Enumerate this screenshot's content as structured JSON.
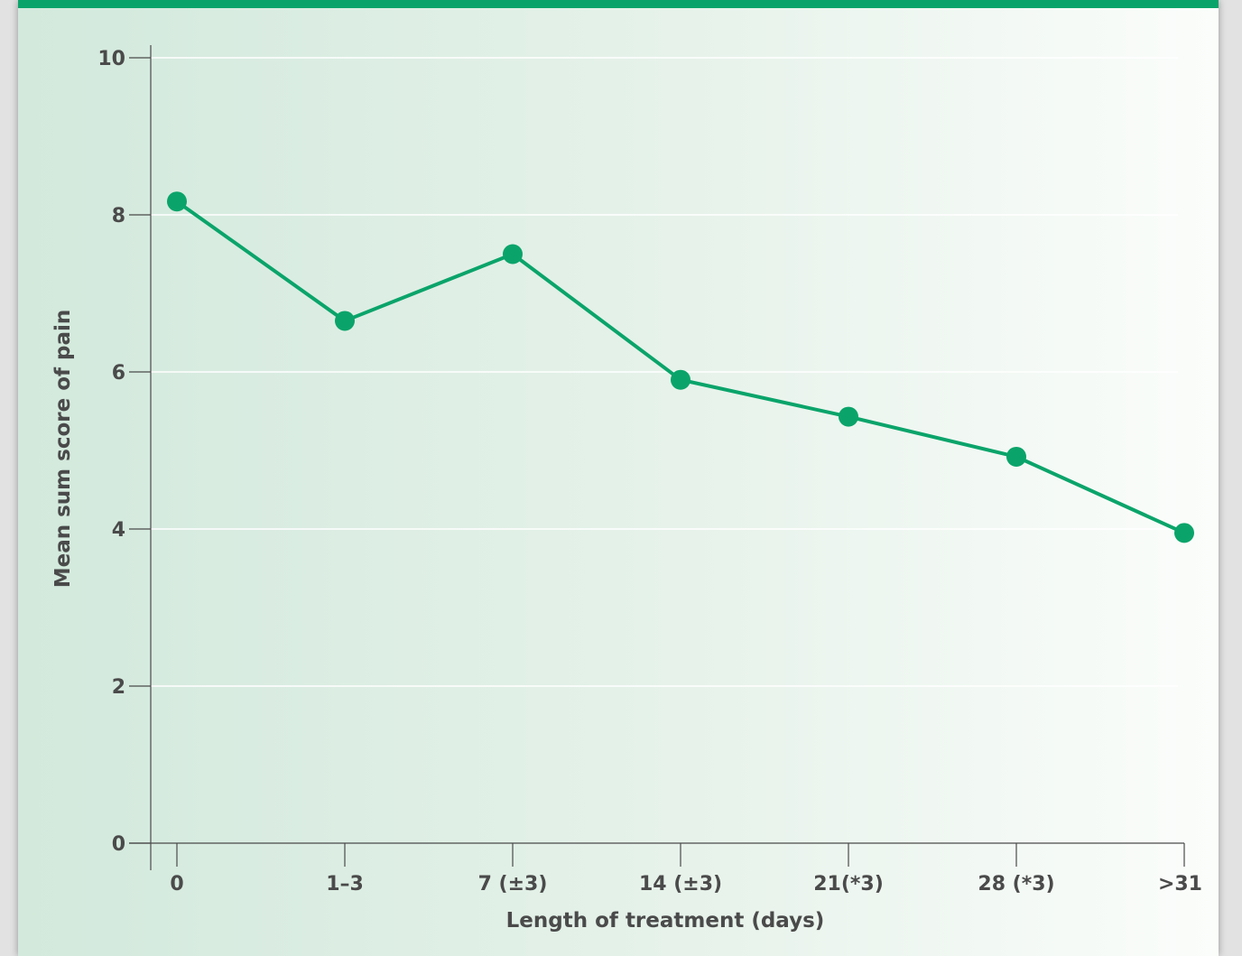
{
  "chart_data": {
    "type": "line",
    "categories": [
      "0",
      "1–3",
      "7 (±3)",
      "14 (±3)",
      "21(*3)",
      "28 (*3)",
      ">31"
    ],
    "series": [
      {
        "values": [
          8.17,
          6.65,
          7.5,
          5.9,
          5.43,
          4.92,
          3.95
        ]
      }
    ],
    "xlabel": "Length of treatment (days)",
    "ylabel": "Mean sum score of pain",
    "ylim": [
      0,
      10
    ],
    "yticks": [
      0,
      2,
      4,
      6,
      8,
      10
    ],
    "grid": true,
    "line_color": "#0aa46a",
    "axis_color": "#4a4a4a"
  }
}
